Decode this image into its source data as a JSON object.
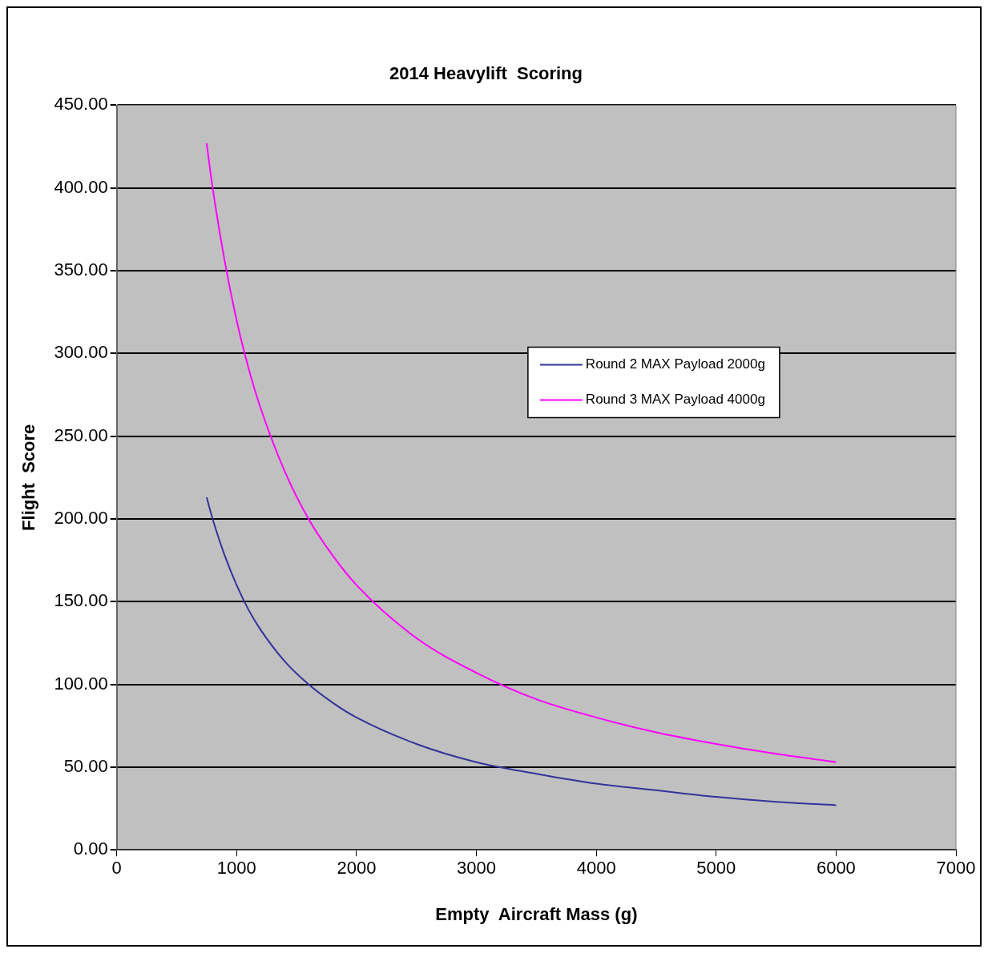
{
  "chart_data": {
    "type": "line",
    "title": "2014 Heavylift  Scoring",
    "xlabel": "Empty  Aircraft Mass (g)",
    "ylabel": "Flight  Score",
    "x": [
      750,
      800,
      900,
      1000,
      1100,
      1200,
      1400,
      1600,
      1800,
      2000,
      2500,
      3000,
      3500,
      4000,
      4500,
      5000,
      5500,
      6000
    ],
    "series": [
      {
        "name": "Round 2 MAX Payload 2000g",
        "color": "#333399",
        "values": [
          213,
          200,
          178,
          160,
          145,
          133,
          114,
          100,
          89,
          80,
          64,
          53,
          46,
          40,
          36,
          32,
          29,
          27
        ]
      },
      {
        "name": "Round 3 MAX Payload 4000g",
        "color": "#ff00ff",
        "values": [
          427,
          400,
          356,
          320,
          291,
          267,
          229,
          200,
          178,
          160,
          128,
          107,
          91,
          80,
          71,
          64,
          58,
          53
        ]
      }
    ],
    "xlim": [
      0,
      7000
    ],
    "xticks": [
      0,
      1000,
      2000,
      3000,
      4000,
      5000,
      6000,
      7000
    ],
    "ylim": [
      0,
      450
    ],
    "yticks": [
      {
        "value": 0,
        "label": "0.00"
      },
      {
        "value": 50,
        "label": "50.00"
      },
      {
        "value": 100,
        "label": "100.00"
      },
      {
        "value": 150,
        "label": "150.00"
      },
      {
        "value": 200,
        "label": "200.00"
      },
      {
        "value": 250,
        "label": "250.00"
      },
      {
        "value": 300,
        "label": "300.00"
      },
      {
        "value": 350,
        "label": "350.00"
      },
      {
        "value": 400,
        "label": "400.00"
      },
      {
        "value": 450,
        "label": "450.00"
      }
    ],
    "grid": "y",
    "legend": "right",
    "marker": "none",
    "line_style": "solid"
  }
}
